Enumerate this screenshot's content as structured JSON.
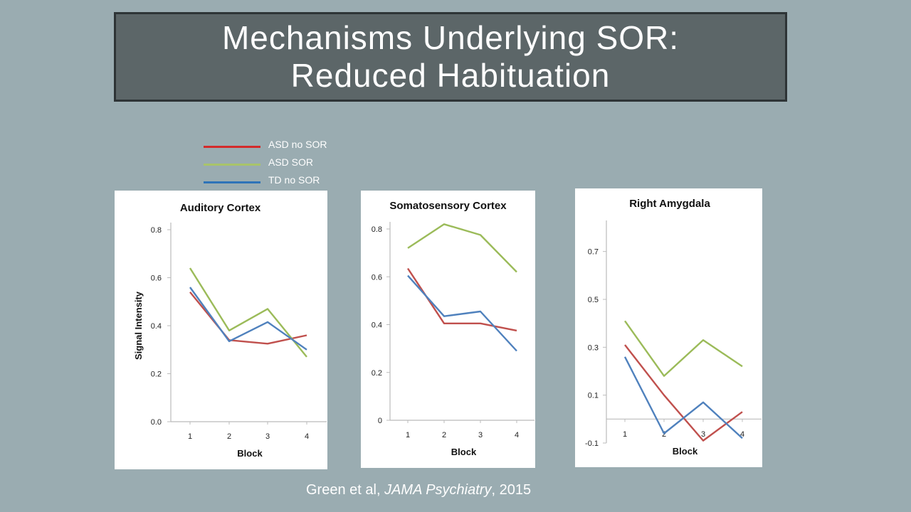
{
  "slide": {
    "title_line1": "Mechanisms Underlying SOR:",
    "title_line2": "Reduced Habituation"
  },
  "legend": {
    "items": [
      {
        "label": "ASD no SOR",
        "color": "#d42b2b"
      },
      {
        "label": "ASD SOR",
        "color": "#a9c46a"
      },
      {
        "label": "TD no SOR",
        "color": "#2e73b8"
      }
    ]
  },
  "citation": {
    "authors": "Green et al, ",
    "journal": "JAMA Psychiatry",
    "year": ", 2015"
  },
  "chart_data": [
    {
      "type": "line",
      "title": "Auditory Cortex",
      "xlabel": "Block",
      "ylabel": "Signal Intensity",
      "x": [
        1,
        2,
        3,
        4
      ],
      "ylim": [
        0,
        0.8
      ],
      "yticks": [
        0.0,
        0.2,
        0.4,
        0.6,
        0.8
      ],
      "ytick_labels": [
        "0.0",
        "0.2",
        "0.4",
        "0.6",
        "0.8"
      ],
      "series": [
        {
          "name": "ASD no SOR",
          "color": "#c0504d",
          "values": [
            0.54,
            0.34,
            0.325,
            0.36
          ]
        },
        {
          "name": "ASD SOR",
          "color": "#9bbb59",
          "values": [
            0.64,
            0.38,
            0.47,
            0.27
          ]
        },
        {
          "name": "TD no SOR",
          "color": "#4f81bd",
          "values": [
            0.56,
            0.335,
            0.415,
            0.3
          ]
        }
      ]
    },
    {
      "type": "line",
      "title": "Somatosensory Cortex",
      "xlabel": "Block",
      "ylabel": "",
      "x": [
        1,
        2,
        3,
        4
      ],
      "ylim": [
        0,
        0.8
      ],
      "yticks": [
        0,
        0.2,
        0.4,
        0.6,
        0.8
      ],
      "ytick_labels": [
        "0",
        "0.2",
        "0.4",
        "0.6",
        "0.8"
      ],
      "series": [
        {
          "name": "ASD no SOR",
          "color": "#c0504d",
          "values": [
            0.635,
            0.405,
            0.405,
            0.375
          ]
        },
        {
          "name": "ASD SOR",
          "color": "#9bbb59",
          "values": [
            0.72,
            0.82,
            0.775,
            0.62
          ]
        },
        {
          "name": "TD no SOR",
          "color": "#4f81bd",
          "values": [
            0.605,
            0.435,
            0.455,
            0.29
          ]
        }
      ]
    },
    {
      "type": "line",
      "title": "Right Amygdala",
      "xlabel": "Block",
      "ylabel": "",
      "x": [
        1,
        2,
        3,
        4
      ],
      "ylim": [
        -0.1,
        0.8
      ],
      "yticks": [
        -0.1,
        0.1,
        0.3,
        0.5,
        0.7
      ],
      "ytick_labels": [
        "-0.1",
        "0.1",
        "0.3",
        "0.5",
        "0.7"
      ],
      "series": [
        {
          "name": "ASD no SOR",
          "color": "#c0504d",
          "values": [
            0.31,
            0.1,
            -0.09,
            0.03
          ]
        },
        {
          "name": "ASD SOR",
          "color": "#9bbb59",
          "values": [
            0.41,
            0.18,
            0.33,
            0.22
          ]
        },
        {
          "name": "TD no SOR",
          "color": "#4f81bd",
          "values": [
            0.26,
            -0.06,
            0.07,
            -0.08
          ]
        }
      ]
    }
  ]
}
